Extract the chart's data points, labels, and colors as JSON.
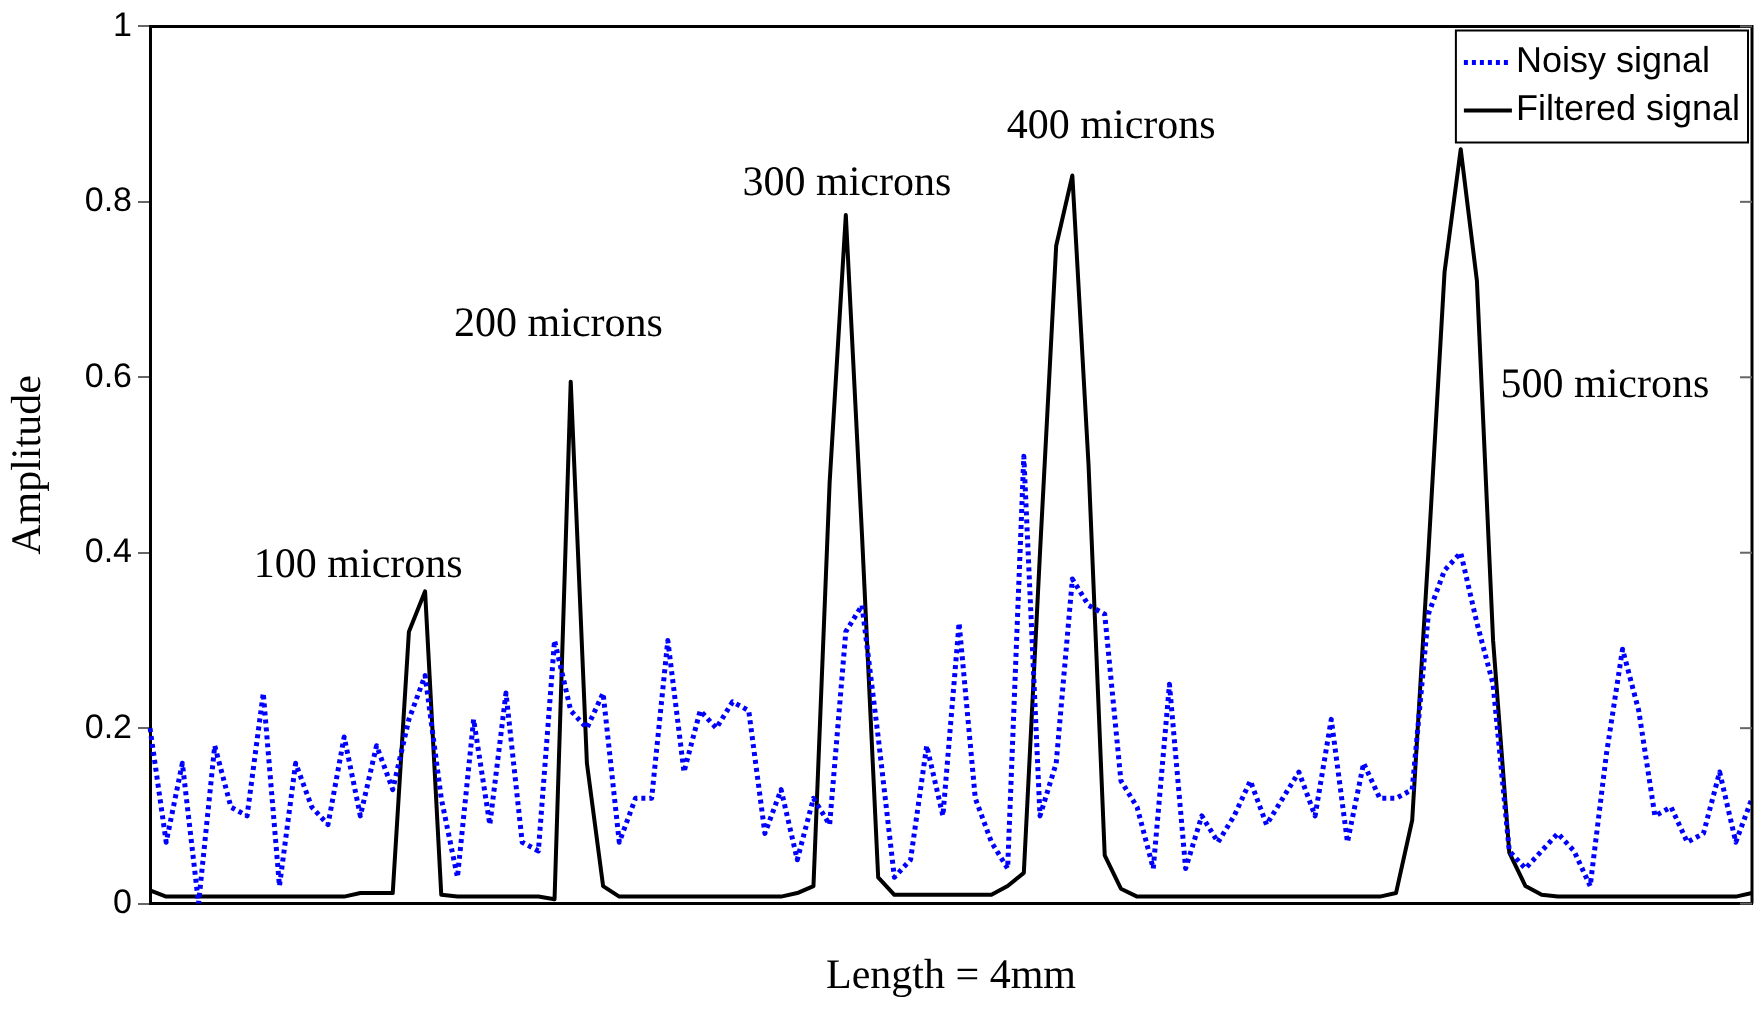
{
  "chart_data": {
    "type": "line",
    "xlabel": "Length = 4mm",
    "ylabel": "Amplitude",
    "categories": [
      null,
      null,
      null,
      null,
      null,
      null,
      null,
      null,
      null,
      null,
      null,
      null,
      null,
      null,
      null,
      null,
      null,
      null,
      null,
      null,
      null,
      null,
      null,
      null,
      null,
      null,
      null,
      null,
      null,
      null,
      null,
      null,
      null,
      null,
      null,
      null,
      null,
      null,
      null,
      null,
      null,
      null,
      null,
      null,
      null,
      null,
      null,
      null,
      null,
      null,
      null,
      null,
      null,
      null,
      null,
      null,
      null,
      null,
      null,
      null,
      null,
      null,
      null,
      null,
      null,
      null,
      null,
      null,
      null,
      null,
      null,
      null,
      null,
      null,
      null,
      null,
      null,
      null,
      null,
      null,
      null,
      null,
      null,
      null,
      null,
      null,
      null,
      null,
      null,
      null,
      null,
      null,
      null,
      null,
      null,
      null,
      null,
      null,
      null,
      null
    ],
    "series": [
      {
        "name": "Noisy signal",
        "color": "#0000ff",
        "line_style": "dotted",
        "values": [
          0.2,
          0.07,
          0.16,
          0.0,
          0.18,
          0.11,
          0.1,
          0.24,
          0.02,
          0.16,
          0.11,
          0.09,
          0.19,
          0.1,
          0.18,
          0.13,
          0.21,
          0.26,
          0.12,
          0.03,
          0.21,
          0.09,
          0.24,
          0.07,
          0.06,
          0.3,
          0.22,
          0.2,
          0.24,
          0.07,
          0.12,
          0.12,
          0.3,
          0.15,
          0.22,
          0.2,
          0.23,
          0.22,
          0.08,
          0.13,
          0.05,
          0.12,
          0.09,
          0.31,
          0.34,
          0.19,
          0.03,
          0.05,
          0.18,
          0.1,
          0.32,
          0.12,
          0.07,
          0.04,
          0.51,
          0.1,
          0.16,
          0.37,
          0.34,
          0.33,
          0.14,
          0.11,
          0.04,
          0.25,
          0.04,
          0.1,
          0.07,
          0.1,
          0.14,
          0.09,
          0.12,
          0.15,
          0.1,
          0.21,
          0.07,
          0.16,
          0.12,
          0.12,
          0.13,
          0.33,
          0.38,
          0.4,
          0.32,
          0.25,
          0.06,
          0.04,
          0.06,
          0.08,
          0.06,
          0.02,
          0.17,
          0.29,
          0.22,
          0.1,
          0.11,
          0.07,
          0.08,
          0.15,
          0.07,
          0.12
        ]
      },
      {
        "name": "Filtered signal",
        "color": "#000000",
        "line_style": "solid",
        "values": [
          0.015,
          0.008,
          0.008,
          0.008,
          0.008,
          0.008,
          0.008,
          0.008,
          0.008,
          0.008,
          0.008,
          0.008,
          0.008,
          0.012,
          0.012,
          0.012,
          0.31,
          0.356,
          0.01,
          0.008,
          0.008,
          0.008,
          0.008,
          0.008,
          0.008,
          0.005,
          0.595,
          0.16,
          0.02,
          0.008,
          0.008,
          0.008,
          0.008,
          0.008,
          0.008,
          0.008,
          0.008,
          0.008,
          0.008,
          0.008,
          0.012,
          0.02,
          0.48,
          0.785,
          0.42,
          0.03,
          0.01,
          0.01,
          0.01,
          0.01,
          0.01,
          0.01,
          0.01,
          0.02,
          0.035,
          0.4,
          0.75,
          0.83,
          0.5,
          0.055,
          0.017,
          0.008,
          0.008,
          0.008,
          0.008,
          0.008,
          0.008,
          0.008,
          0.008,
          0.008,
          0.008,
          0.008,
          0.008,
          0.008,
          0.008,
          0.008,
          0.008,
          0.012,
          0.095,
          0.4,
          0.72,
          0.86,
          0.71,
          0.3,
          0.058,
          0.02,
          0.01,
          0.008,
          0.008,
          0.008,
          0.008,
          0.008,
          0.008,
          0.008,
          0.008,
          0.008,
          0.008,
          0.008,
          0.008,
          0.012
        ]
      }
    ],
    "ylim": [
      0,
      1
    ],
    "yticks": [
      0,
      0.2,
      0.4,
      0.6,
      0.8,
      1
    ],
    "tick_labels": "y",
    "grid": false,
    "legend": "top right",
    "marker": "none",
    "annotations": [
      "100 microns",
      "200 microns",
      "300 microns",
      "400 microns",
      "500 microns"
    ]
  }
}
